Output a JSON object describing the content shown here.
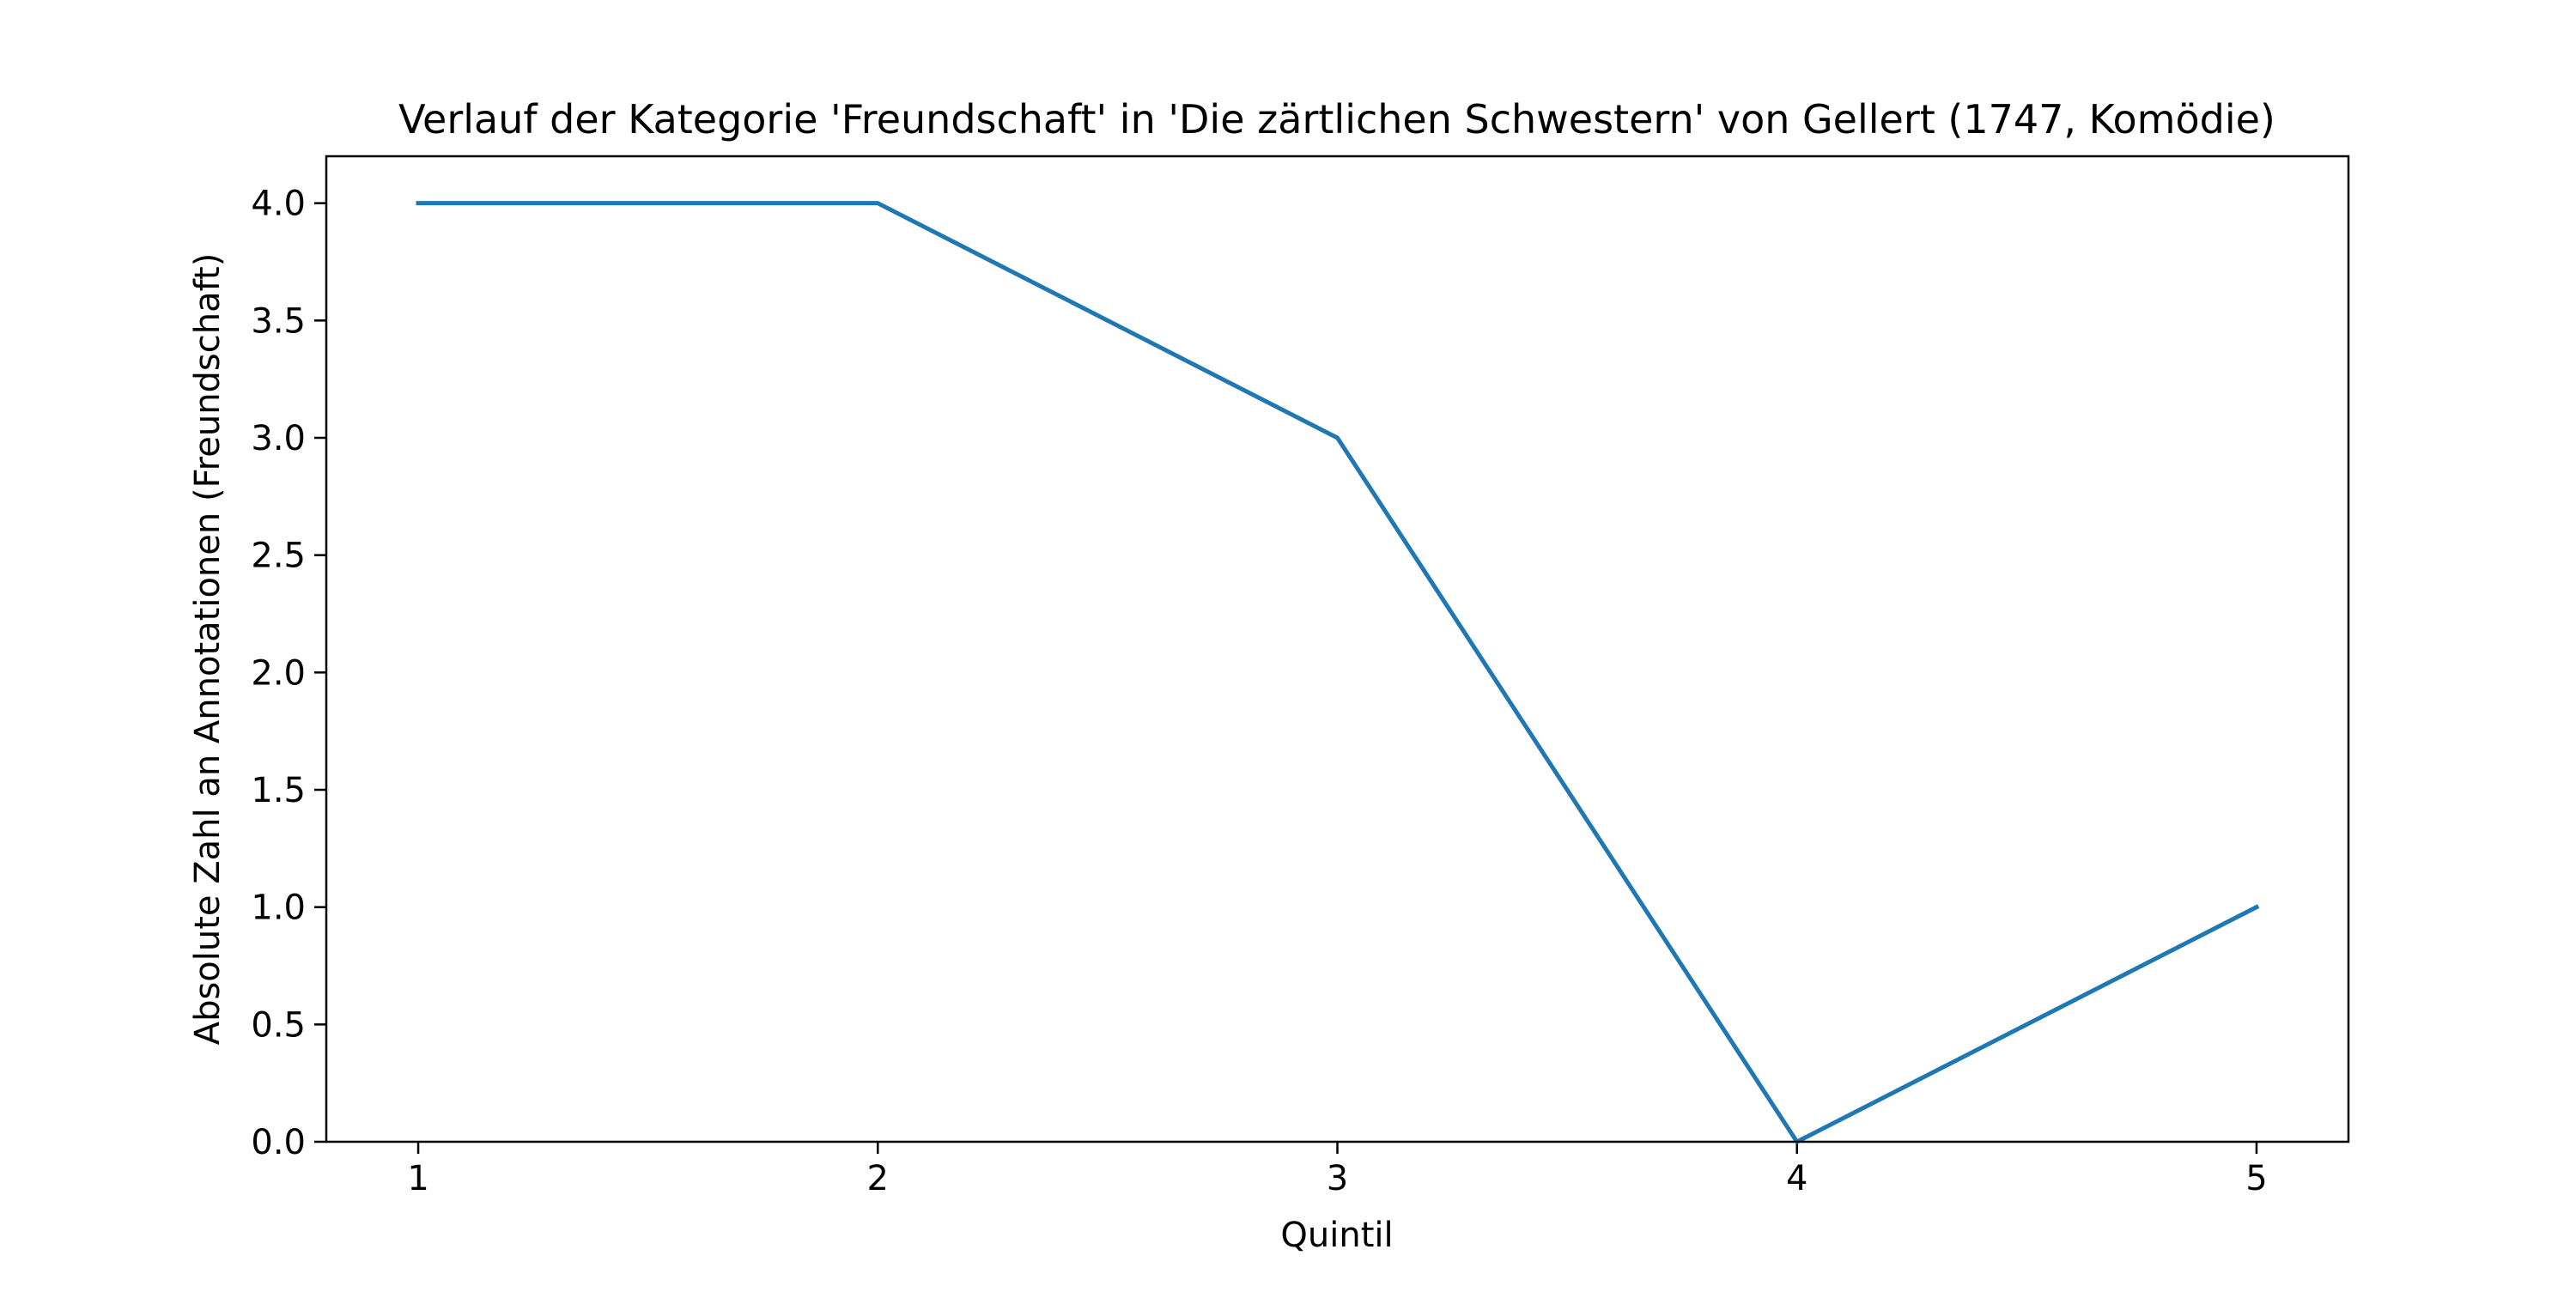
{
  "chart_data": {
    "type": "line",
    "title": "Verlauf der Kategorie 'Freundschaft' in 'Die zärtlichen Schwestern' von Gellert (1747, Komödie)",
    "xlabel": "Quintil",
    "ylabel": "Absolute Zahl an Annotationen (Freundschaft)",
    "x": [
      1,
      2,
      3,
      4,
      5
    ],
    "xticks": [
      "1",
      "2",
      "3",
      "4",
      "5"
    ],
    "xlim": [
      0.8,
      5.2
    ],
    "yticks": [
      "0.0",
      "0.5",
      "1.0",
      "1.5",
      "2.0",
      "2.5",
      "3.0",
      "3.5",
      "4.0"
    ],
    "ylim": [
      0,
      4.2
    ],
    "grid": false,
    "series": [
      {
        "values": [
          4,
          4,
          3,
          0,
          1
        ],
        "color": "#1f77b4"
      }
    ]
  }
}
